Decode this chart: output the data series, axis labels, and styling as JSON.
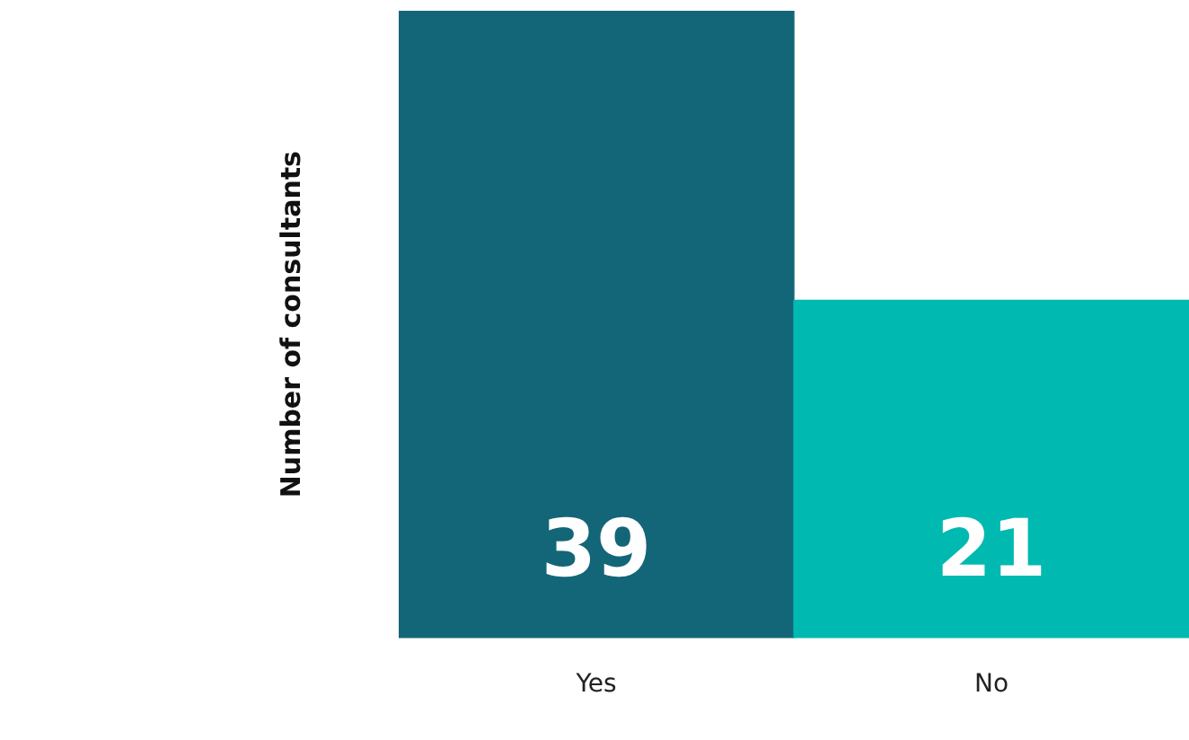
{
  "chart_data": {
    "type": "bar",
    "ylabel": "Number of consultants",
    "categories": [
      "Yes",
      "No"
    ],
    "series": [
      {
        "values": [
          39,
          21
        ],
        "colors": [
          "#136677",
          "#00b9b0"
        ]
      }
    ],
    "data_labels": true,
    "grid": false,
    "legend": false
  }
}
